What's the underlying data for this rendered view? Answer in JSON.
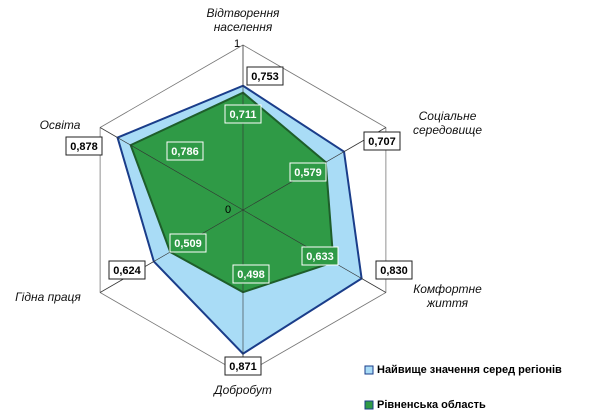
{
  "chart_data": {
    "type": "radar",
    "categories": [
      "Відтворення населення",
      "Соціальне середовище",
      "Комфортне життя",
      "Добробут",
      "Гідна праця",
      "Освіта"
    ],
    "series": [
      {
        "name": "Найвище значення серед регіонів",
        "color": "#a9dcf6",
        "values": [
          0.753,
          0.707,
          0.83,
          0.871,
          0.624,
          0.878
        ],
        "value_labels": [
          "0,753",
          "0,707",
          "0,830",
          "0,871",
          "0,624",
          "0,878"
        ]
      },
      {
        "name": "Рівненська область",
        "color": "#2f9a46",
        "values": [
          0.711,
          0.579,
          0.633,
          0.498,
          0.509,
          0.786
        ],
        "value_labels": [
          "0,711",
          "0,579",
          "0,633",
          "0,498",
          "0,509",
          "0,786"
        ]
      }
    ],
    "rlim": [
      0,
      1
    ],
    "rticks": [
      0,
      1
    ],
    "legend": "bottom-right"
  }
}
